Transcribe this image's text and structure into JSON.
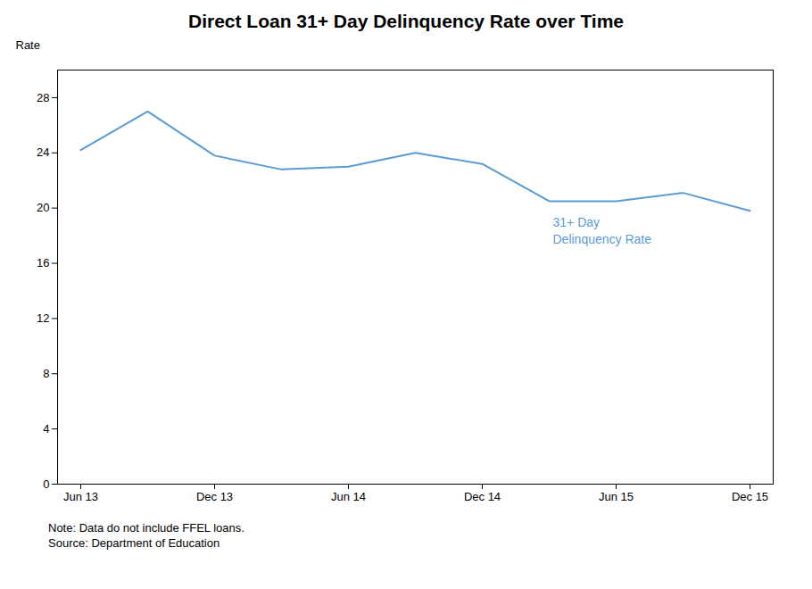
{
  "chart_data": {
    "type": "line",
    "title": "Direct Loan 31+ Day Delinquency Rate over Time",
    "y_label": "Rate",
    "annotation": "31+ Day\nDelinquency Rate",
    "note": "Note: Data do not include FFEL loans.",
    "source": "Source: Department of Education",
    "categories": [
      "Jun 13",
      null,
      "Dec 13",
      null,
      "Jun 14",
      null,
      "Dec 14",
      null,
      "Jun 15",
      null,
      "Dec 15"
    ],
    "values": [
      24.2,
      27.0,
      23.8,
      22.8,
      23.0,
      24.0,
      23.2,
      20.5,
      20.5,
      21.1,
      19.8
    ],
    "color": "#5B9BD5",
    "ylim": [
      0,
      30
    ],
    "yticks": [
      0,
      4,
      8,
      12,
      16,
      20,
      24,
      28
    ],
    "grid": false
  }
}
